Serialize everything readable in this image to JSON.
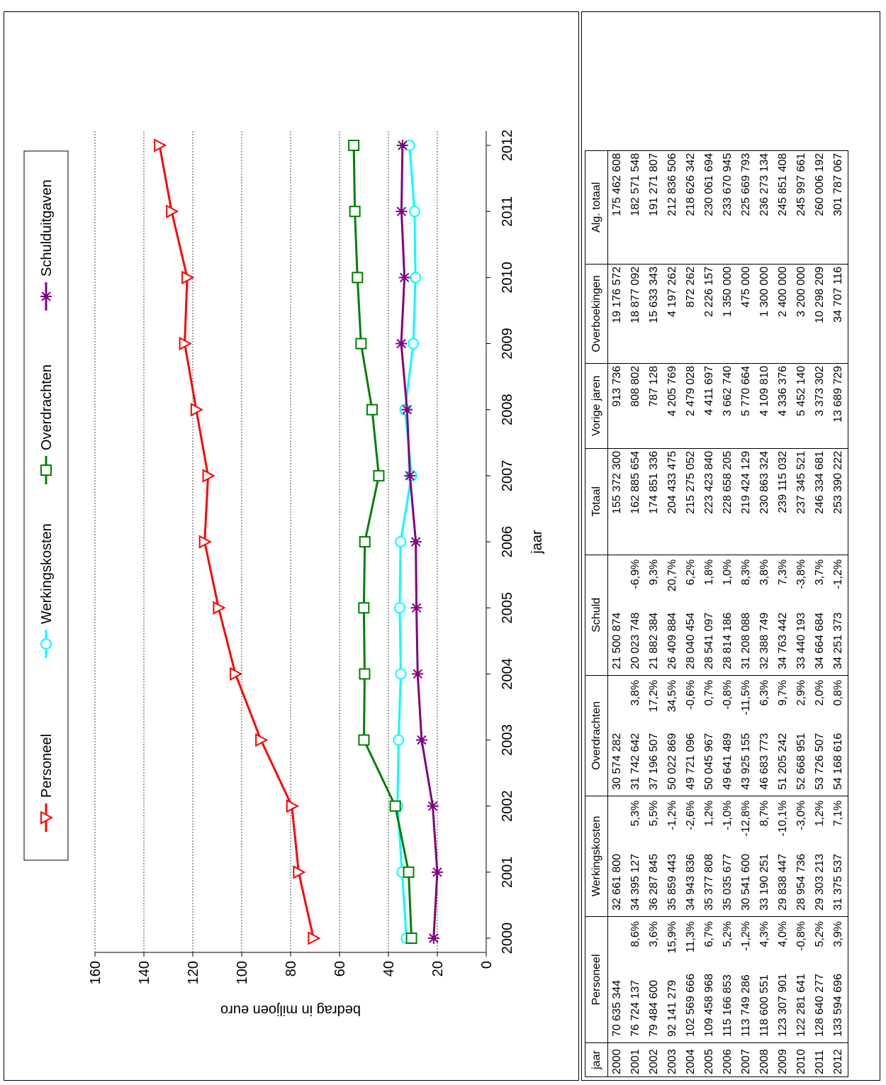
{
  "chart_data": {
    "type": "line",
    "xlabel": "jaar",
    "ylabel": "bedrag in miljoen euro",
    "ylim": [
      0,
      160
    ],
    "yticks": [
      0,
      20,
      40,
      60,
      80,
      100,
      120,
      140,
      160
    ],
    "x": [
      "2000",
      "2001",
      "2002",
      "2003",
      "2004",
      "2005",
      "2006",
      "2007",
      "2008",
      "2009",
      "2010",
      "2011",
      "2012"
    ],
    "grid": true,
    "legend_position": "top",
    "series": [
      {
        "name": "Personeel",
        "color": "#ff0000",
        "marker": "triangle",
        "values": [
          70.64,
          76.72,
          79.48,
          92.14,
          102.57,
          109.46,
          115.17,
          113.75,
          118.6,
          123.31,
          122.28,
          128.64,
          133.59
        ]
      },
      {
        "name": "Werkingskosten",
        "color": "#00ffff",
        "marker": "circle",
        "values": [
          32.66,
          34.4,
          36.29,
          35.86,
          34.94,
          35.38,
          35.04,
          30.54,
          33.19,
          29.84,
          28.95,
          29.3,
          31.38
        ]
      },
      {
        "name": "Overdrachten",
        "color": "#008000",
        "marker": "square",
        "values": [
          30.57,
          31.74,
          37.2,
          50.02,
          49.72,
          50.05,
          49.64,
          43.93,
          46.68,
          51.21,
          52.67,
          53.73,
          54.17
        ]
      },
      {
        "name": "Schulduitgaven",
        "color": "#800080",
        "marker": "star",
        "values": [
          21.5,
          20.02,
          21.88,
          26.41,
          28.04,
          28.54,
          28.81,
          31.21,
          32.39,
          34.76,
          33.44,
          34.66,
          34.25
        ]
      }
    ]
  },
  "table": {
    "headers": [
      "jaar",
      "Personeel",
      "Werkingskosten",
      "Overdrachten",
      "Schuld",
      "Totaal",
      "Vorige jaren",
      "Overboekingen",
      "Alg. totaal"
    ],
    "rows": [
      {
        "jaar": "2000",
        "personeel": "70 635 344",
        "personeel_pct": "",
        "werking": "32 661 800",
        "werking_pct": "",
        "overdr": "30 574 282",
        "overdr_pct": "",
        "schuld": "21 500 874",
        "schuld_pct": "",
        "totaal": "155 372 300",
        "vorige": "913 736",
        "overb": "19 176 572",
        "alg": "175 462 608"
      },
      {
        "jaar": "2001",
        "personeel": "76 724 137",
        "personeel_pct": "8,6%",
        "werking": "34 395 127",
        "werking_pct": "5,3%",
        "overdr": "31 742 642",
        "overdr_pct": "3,8%",
        "schuld": "20 023 748",
        "schuld_pct": "-6,9%",
        "totaal": "162 885 654",
        "vorige": "808 802",
        "overb": "18 877 092",
        "alg": "182 571 548"
      },
      {
        "jaar": "2002",
        "personeel": "79 484 600",
        "personeel_pct": "3,6%",
        "werking": "36 287 845",
        "werking_pct": "5,5%",
        "overdr": "37 196 507",
        "overdr_pct": "17,2%",
        "schuld": "21 882 384",
        "schuld_pct": "9,3%",
        "totaal": "174 851 336",
        "vorige": "787 128",
        "overb": "15 633 343",
        "alg": "191 271 807"
      },
      {
        "jaar": "2003",
        "personeel": "92 141 279",
        "personeel_pct": "15,9%",
        "werking": "35 859 443",
        "werking_pct": "-1,2%",
        "overdr": "50 022 869",
        "overdr_pct": "34,5%",
        "schuld": "26 409 884",
        "schuld_pct": "20,7%",
        "totaal": "204 433 475",
        "vorige": "4 205 769",
        "overb": "4 197 262",
        "alg": "212 836 506"
      },
      {
        "jaar": "2004",
        "personeel": "102 569 666",
        "personeel_pct": "11,3%",
        "werking": "34 943 836",
        "werking_pct": "-2,6%",
        "overdr": "49 721 096",
        "overdr_pct": "-0,6%",
        "schuld": "28 040 454",
        "schuld_pct": "6,2%",
        "totaal": "215 275 052",
        "vorige": "2 479 028",
        "overb": "872 262",
        "alg": "218 626 342"
      },
      {
        "jaar": "2005",
        "personeel": "109 458 968",
        "personeel_pct": "6,7%",
        "werking": "35 377 808",
        "werking_pct": "1,2%",
        "overdr": "50 045 967",
        "overdr_pct": "0,7%",
        "schuld": "28 541 097",
        "schuld_pct": "1,8%",
        "totaal": "223 423 840",
        "vorige": "4 411 697",
        "overb": "2 226 157",
        "alg": "230 061 694"
      },
      {
        "jaar": "2006",
        "personeel": "115 166 853",
        "personeel_pct": "5,2%",
        "werking": "35 035 677",
        "werking_pct": "-1,0%",
        "overdr": "49 641 489",
        "overdr_pct": "-0,8%",
        "schuld": "28 814 186",
        "schuld_pct": "1,0%",
        "totaal": "228 658 205",
        "vorige": "3 662 740",
        "overb": "1 350 000",
        "alg": "233 670 945"
      },
      {
        "jaar": "2007",
        "personeel": "113 749 286",
        "personeel_pct": "-1,2%",
        "werking": "30 541 600",
        "werking_pct": "-12,8%",
        "overdr": "43 925 155",
        "overdr_pct": "-11,5%",
        "schuld": "31 208 088",
        "schuld_pct": "8,3%",
        "totaal": "219 424 129",
        "vorige": "5 770 664",
        "overb": "475 000",
        "alg": "225 669 793"
      },
      {
        "jaar": "2008",
        "personeel": "118 600 551",
        "personeel_pct": "4,3%",
        "werking": "33 190 251",
        "werking_pct": "8,7%",
        "overdr": "46 683 773",
        "overdr_pct": "6,3%",
        "schuld": "32 388 749",
        "schuld_pct": "3,8%",
        "totaal": "230 863 324",
        "vorige": "4 109 810",
        "overb": "1 300 000",
        "alg": "236 273 134"
      },
      {
        "jaar": "2009",
        "personeel": "123 307 901",
        "personeel_pct": "4,0%",
        "werking": "29 838 447",
        "werking_pct": "-10,1%",
        "overdr": "51 205 242",
        "overdr_pct": "9,7%",
        "schuld": "34 763 442",
        "schuld_pct": "7,3%",
        "totaal": "239 115 032",
        "vorige": "4 336 376",
        "overb": "2 400 000",
        "alg": "245 851 408"
      },
      {
        "jaar": "2010",
        "personeel": "122 281 641",
        "personeel_pct": "-0,8%",
        "werking": "28 954 736",
        "werking_pct": "-3,0%",
        "overdr": "52 668 951",
        "overdr_pct": "2,9%",
        "schuld": "33 440 193",
        "schuld_pct": "-3,8%",
        "totaal": "237 345 521",
        "vorige": "5 452 140",
        "overb": "3 200 000",
        "alg": "245 997 661"
      },
      {
        "jaar": "2011",
        "personeel": "128 640 277",
        "personeel_pct": "5,2%",
        "werking": "29 303 213",
        "werking_pct": "1,2%",
        "overdr": "53 726 507",
        "overdr_pct": "2,0%",
        "schuld": "34 664 684",
        "schuld_pct": "3,7%",
        "totaal": "246 334 681",
        "vorige": "3 373 302",
        "overb": "10 298 209",
        "alg": "260 006 192"
      },
      {
        "jaar": "2012",
        "personeel": "133 594 696",
        "personeel_pct": "3,9%",
        "werking": "31 375 537",
        "werking_pct": "7,1%",
        "overdr": "54 168 616",
        "overdr_pct": "0,8%",
        "schuld": "34 251 373",
        "schuld_pct": "-1,2%",
        "totaal": "253 390 222",
        "vorige": "13 689 729",
        "overb": "34 707 116",
        "alg": "301 787 067"
      }
    ]
  }
}
